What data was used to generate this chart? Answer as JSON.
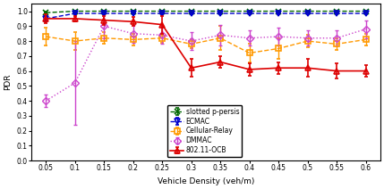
{
  "x": [
    0.05,
    0.1,
    0.15,
    0.2,
    0.25,
    0.3,
    0.35,
    0.4,
    0.45,
    0.5,
    0.55,
    0.6
  ],
  "ecmac": [
    0.95,
    0.985,
    0.985,
    0.985,
    0.985,
    0.985,
    0.985,
    0.985,
    0.985,
    0.985,
    0.985,
    0.985
  ],
  "ecmac_err": [
    0.02,
    0.005,
    0.005,
    0.005,
    0.005,
    0.005,
    0.005,
    0.005,
    0.005,
    0.005,
    0.005,
    0.005
  ],
  "ocb": [
    0.95,
    0.95,
    0.94,
    0.93,
    0.91,
    0.62,
    0.66,
    0.61,
    0.62,
    0.62,
    0.6,
    0.6
  ],
  "ocb_err": [
    0.03,
    0.02,
    0.03,
    0.03,
    0.06,
    0.06,
    0.04,
    0.04,
    0.04,
    0.06,
    0.05,
    0.04
  ],
  "dmmac": [
    0.4,
    0.52,
    0.9,
    0.85,
    0.84,
    0.8,
    0.84,
    0.82,
    0.83,
    0.82,
    0.82,
    0.88
  ],
  "dmmac_err": [
    0.04,
    0.28,
    0.08,
    0.06,
    0.06,
    0.06,
    0.07,
    0.05,
    0.06,
    0.05,
    0.05,
    0.06
  ],
  "cellular": [
    0.83,
    0.8,
    0.82,
    0.81,
    0.82,
    0.78,
    0.82,
    0.72,
    0.75,
    0.8,
    0.78,
    0.81
  ],
  "cellular_err": [
    0.06,
    0.06,
    0.04,
    0.04,
    0.03,
    0.03,
    0.08,
    0.06,
    0.07,
    0.04,
    0.04,
    0.04
  ],
  "slotted": [
    0.99,
    1.0,
    1.0,
    1.0,
    1.0,
    1.0,
    1.0,
    1.0,
    1.0,
    1.0,
    1.0,
    1.0
  ],
  "slotted_err": [
    0.005,
    0.002,
    0.002,
    0.002,
    0.002,
    0.002,
    0.002,
    0.002,
    0.002,
    0.002,
    0.002,
    0.002
  ],
  "xlabel": "Vehicle Density (veh/m)",
  "ylabel": "PDR",
  "xlim": [
    0.025,
    0.625
  ],
  "ylim": [
    0.0,
    1.05
  ],
  "yticks": [
    0,
    0.1,
    0.2,
    0.3,
    0.4,
    0.5,
    0.6,
    0.7,
    0.8,
    0.9,
    1.0
  ],
  "xticks": [
    0.05,
    0.1,
    0.15,
    0.2,
    0.25,
    0.3,
    0.35,
    0.4,
    0.45,
    0.5,
    0.55,
    0.6
  ],
  "legend_labels": [
    "ECMAC",
    "802.11-OCB",
    "DMMAC",
    "Cellular-Relay",
    "slotted p-persis"
  ],
  "colors": {
    "ecmac": "#0000cc",
    "ocb": "#dd0000",
    "dmmac": "#cc44cc",
    "cellular": "#ff9900",
    "slotted": "#006600"
  }
}
